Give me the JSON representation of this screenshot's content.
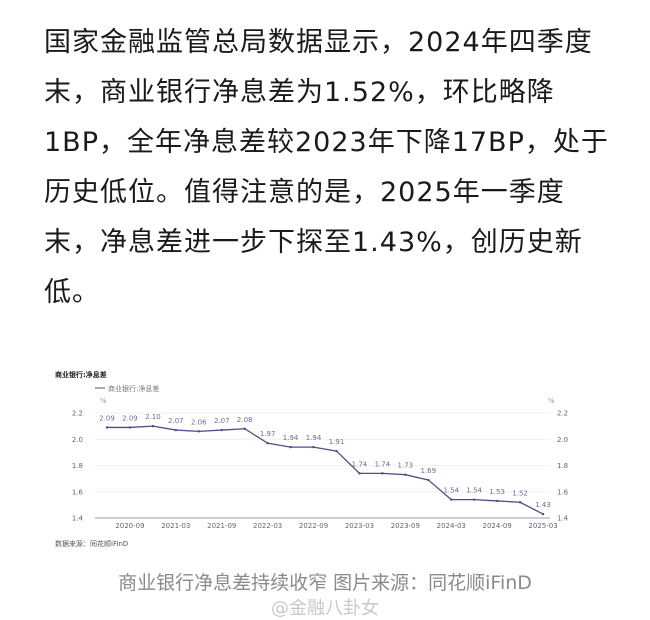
{
  "article": {
    "lines": [
      "国家金融监管总局数据显示，2024年四季度",
      "末，商业银行净息差为1.52%，环比略降",
      "1BP，全年净息差较2023年下降17BP，处于",
      "历史低位。值得注意的是，2025年一季度",
      "末，净息差进一步下探至1.43%，创历史新",
      "低。"
    ]
  },
  "caption": "商业银行净息差持续收窄 图片来源：同花顺iFinD",
  "watermark": "@金融八卦女",
  "chart_data": {
    "type": "line",
    "title": "商业银行:净息差",
    "legend": "商业银行:净息差",
    "legend_placement": "top-left",
    "unit_left": "%",
    "unit_right": "%",
    "source": "数据来源：同花顺iFinD",
    "x": [
      "2020-06",
      "2020-09",
      "2020-12",
      "2021-03",
      "2021-06",
      "2021-09",
      "2021-12",
      "2022-03",
      "2022-06",
      "2022-09",
      "2022-12",
      "2023-03",
      "2023-06",
      "2023-09",
      "2023-12",
      "2024-03",
      "2024-06",
      "2024-09",
      "2024-12",
      "2025-03"
    ],
    "x_tick_labels": [
      "2020-09",
      "2021-03",
      "2021-09",
      "2022-03",
      "2022-09",
      "2023-03",
      "2023-09",
      "2024-03",
      "2024-09",
      "2025-03"
    ],
    "series": [
      {
        "name": "商业银行:净息差",
        "values": [
          2.09,
          2.09,
          2.1,
          2.07,
          2.06,
          2.07,
          2.08,
          1.97,
          1.94,
          1.94,
          1.91,
          1.74,
          1.74,
          1.73,
          1.69,
          1.54,
          1.54,
          1.53,
          1.52,
          1.43
        ]
      }
    ],
    "y_ticks": [
      "2.2",
      "2.0",
      "1.8",
      "1.6",
      "1.4"
    ],
    "ylim": [
      1.4,
      2.2
    ],
    "grid": true,
    "color": "#4a4f86"
  }
}
